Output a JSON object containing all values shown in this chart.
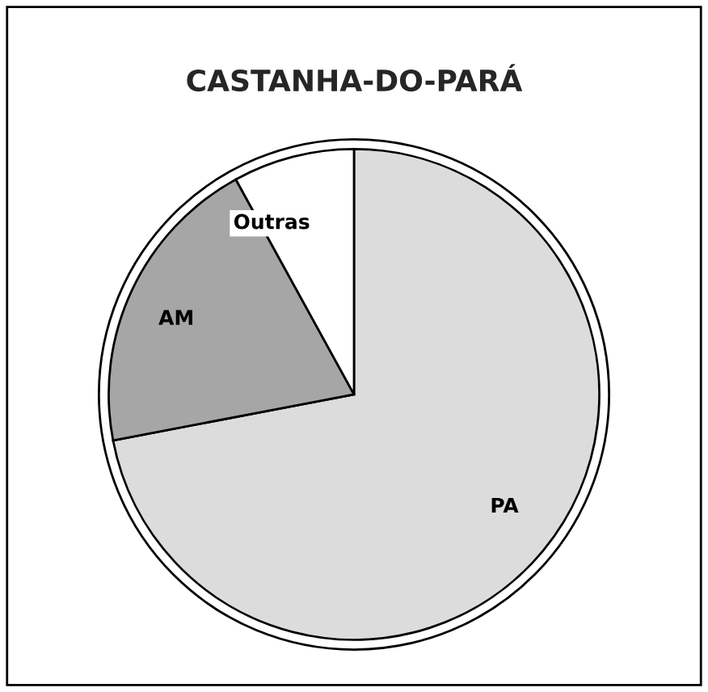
{
  "chart_data": {
    "type": "pie",
    "title": "CASTANHA-DO-PARÁ",
    "categories": [
      "PA",
      "AM",
      "Outras"
    ],
    "values": [
      72,
      20,
      8
    ],
    "colors": [
      "#dcdcdc",
      "#a6a6a6",
      "#ffffff"
    ]
  }
}
